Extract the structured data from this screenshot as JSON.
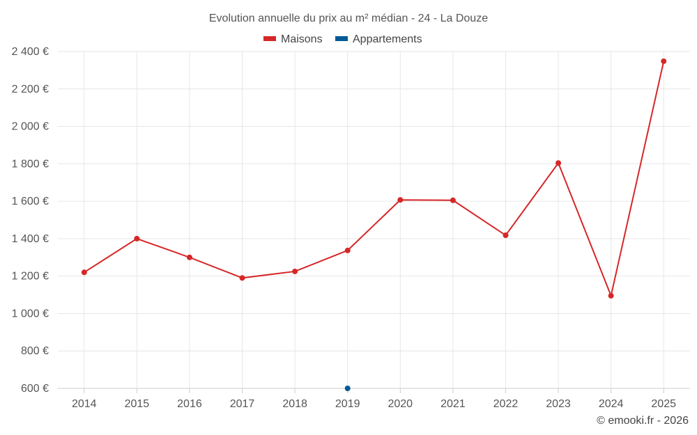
{
  "chart_data": {
    "type": "line",
    "title": "Evolution annuelle du prix au m² médian - 24 - La Douze",
    "categories": [
      "2014",
      "2015",
      "2016",
      "2017",
      "2018",
      "2019",
      "2020",
      "2021",
      "2022",
      "2023",
      "2024",
      "2025"
    ],
    "series": [
      {
        "name": "Maisons",
        "color": "#d62728",
        "values": [
          1220,
          1400,
          1300,
          1190,
          1225,
          1337,
          1607,
          1605,
          1418,
          1804,
          1095,
          2348
        ]
      },
      {
        "name": "Appartements",
        "color": "#005a96",
        "values": [
          null,
          null,
          null,
          null,
          null,
          600,
          null,
          null,
          null,
          null,
          null,
          null
        ]
      }
    ],
    "y_ticks": [
      "600 €",
      "800 €",
      "1 000 €",
      "1 200 €",
      "1 400 €",
      "1 600 €",
      "1 800 €",
      "2 000 €",
      "2 200 €",
      "2 400 €"
    ],
    "ylim": [
      600,
      2400
    ],
    "grid": true,
    "legend_position": "top-center",
    "xlabel": "",
    "ylabel": ""
  },
  "credit": "© emooki.fr - 2026",
  "colors": {
    "grid": "#e6e6e6",
    "axis": "#cccccc"
  }
}
